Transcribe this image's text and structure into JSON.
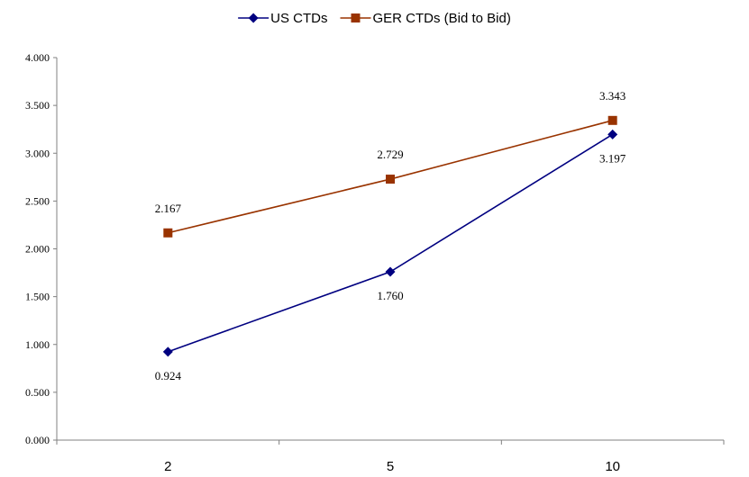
{
  "chart_data": {
    "type": "line",
    "title": "",
    "xlabel": "",
    "ylabel": "",
    "categories": [
      "2",
      "5",
      "10"
    ],
    "ylim": [
      0,
      4
    ],
    "yticks": [
      "0.000",
      "0.500",
      "1.000",
      "1.500",
      "2.000",
      "2.500",
      "3.000",
      "3.500",
      "4.000"
    ],
    "grid": false,
    "legend": "top",
    "series": [
      {
        "name": "US CTDs",
        "color": "#000080",
        "marker": "diamond",
        "values": [
          0.924,
          1.76,
          3.197
        ],
        "labels": [
          "0.924",
          "1.760",
          "3.197"
        ],
        "label_position": "below"
      },
      {
        "name": "GER CTDs (Bid to Bid)",
        "color": "#993300",
        "marker": "square",
        "values": [
          2.167,
          2.729,
          3.343
        ],
        "labels": [
          "2.167",
          "2.729",
          "3.343"
        ],
        "label_position": "above"
      }
    ]
  }
}
